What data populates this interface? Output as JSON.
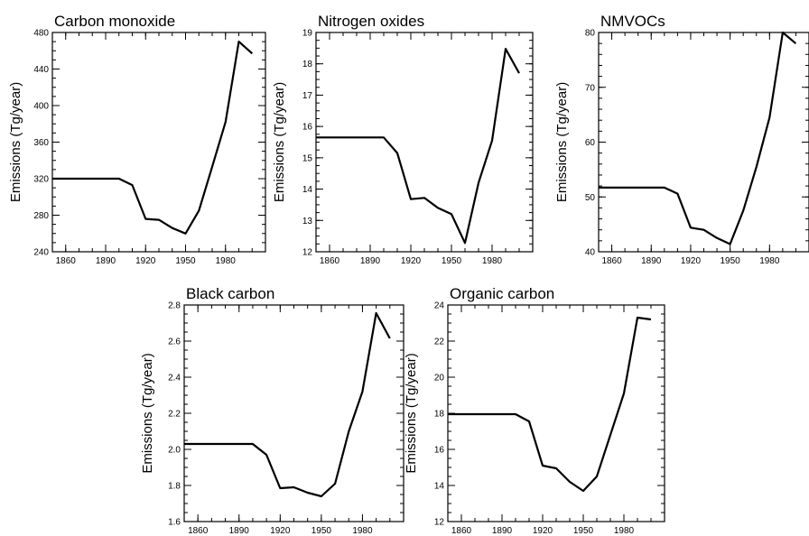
{
  "chart_data": [
    {
      "type": "line",
      "title": "Carbon monoxide",
      "ylabel": "Emissions (Tg/year)",
      "xlabel": "",
      "xlim": [
        1850,
        2010
      ],
      "ylim": [
        240,
        480
      ],
      "xticks": [
        1860,
        1890,
        1920,
        1950,
        1980
      ],
      "yticks": [
        240,
        280,
        320,
        360,
        400,
        440,
        480
      ],
      "xminor": 10,
      "yminor": 10,
      "x": [
        1850,
        1860,
        1870,
        1880,
        1890,
        1900,
        1910,
        1920,
        1930,
        1940,
        1950,
        1960,
        1970,
        1980,
        1990,
        2000
      ],
      "series": [
        {
          "values": [
            320,
            320,
            320,
            320,
            320,
            320,
            313,
            276,
            275,
            266,
            260,
            285,
            333,
            382,
            470,
            457
          ]
        }
      ]
    },
    {
      "type": "line",
      "title": "Nitrogen oxides",
      "ylabel": "Emissions (Tg/year)",
      "xlabel": "",
      "xlim": [
        1850,
        2010
      ],
      "ylim": [
        12,
        19
      ],
      "xticks": [
        1860,
        1890,
        1920,
        1950,
        1980
      ],
      "yticks": [
        12,
        13,
        14,
        15,
        16,
        17,
        18,
        19
      ],
      "xminor": 10,
      "yminor": 0.25,
      "x": [
        1850,
        1860,
        1870,
        1880,
        1890,
        1900,
        1910,
        1920,
        1930,
        1940,
        1950,
        1960,
        1970,
        1980,
        1990,
        2000
      ],
      "series": [
        {
          "values": [
            15.65,
            15.65,
            15.65,
            15.65,
            15.65,
            15.65,
            15.15,
            13.68,
            13.72,
            13.4,
            13.2,
            12.28,
            14.2,
            15.55,
            18.48,
            17.7
          ]
        }
      ]
    },
    {
      "type": "line",
      "title": "NMVOCs",
      "ylabel": "Emissions (Tg/year)",
      "xlabel": "",
      "xlim": [
        1850,
        2010
      ],
      "ylim": [
        40,
        80
      ],
      "xticks": [
        1860,
        1890,
        1920,
        1950,
        1980
      ],
      "yticks": [
        40,
        50,
        60,
        70,
        80
      ],
      "xminor": 10,
      "yminor": 2,
      "x": [
        1850,
        1860,
        1870,
        1880,
        1890,
        1900,
        1910,
        1920,
        1930,
        1940,
        1950,
        1960,
        1970,
        1980,
        1990,
        2000
      ],
      "series": [
        {
          "values": [
            51.7,
            51.7,
            51.7,
            51.7,
            51.7,
            51.7,
            50.6,
            44.4,
            44.0,
            42.5,
            41.4,
            47.5,
            55.5,
            64.5,
            80.0,
            78.0
          ]
        }
      ]
    },
    {
      "type": "line",
      "title": "Black carbon",
      "ylabel": "Emissions (Tg/year)",
      "xlabel": "",
      "xlim": [
        1850,
        2010
      ],
      "ylim": [
        1.6,
        2.8
      ],
      "xticks": [
        1860,
        1890,
        1920,
        1950,
        1980
      ],
      "yticks": [
        1.6,
        1.8,
        2.0,
        2.2,
        2.4,
        2.6,
        2.8
      ],
      "ytickLabels": [
        "1.6",
        "1.8",
        "2.0",
        "2.2",
        "2.4",
        "2.6",
        "2.8"
      ],
      "xminor": 10,
      "yminor": 0.05,
      "x": [
        1850,
        1860,
        1870,
        1880,
        1890,
        1900,
        1910,
        1920,
        1930,
        1940,
        1950,
        1960,
        1970,
        1980,
        1990,
        2000
      ],
      "series": [
        {
          "values": [
            2.03,
            2.03,
            2.03,
            2.03,
            2.03,
            2.03,
            1.97,
            1.785,
            1.79,
            1.76,
            1.74,
            1.81,
            2.1,
            2.32,
            2.755,
            2.615
          ]
        }
      ]
    },
    {
      "type": "line",
      "title": "Organic carbon",
      "ylabel": "Emissions (Tg/year)",
      "xlabel": "",
      "xlim": [
        1850,
        2010
      ],
      "ylim": [
        12,
        24
      ],
      "xticks": [
        1860,
        1890,
        1920,
        1950,
        1980
      ],
      "yticks": [
        12,
        14,
        16,
        18,
        20,
        22,
        24
      ],
      "xminor": 10,
      "yminor": 0.5,
      "x": [
        1850,
        1860,
        1870,
        1880,
        1890,
        1900,
        1910,
        1920,
        1930,
        1940,
        1950,
        1960,
        1970,
        1980,
        1990,
        2000
      ],
      "series": [
        {
          "values": [
            17.95,
            17.95,
            17.95,
            17.95,
            17.95,
            17.95,
            17.55,
            15.1,
            14.95,
            14.2,
            13.7,
            14.5,
            16.8,
            19.1,
            23.3,
            23.2
          ]
        }
      ]
    }
  ]
}
